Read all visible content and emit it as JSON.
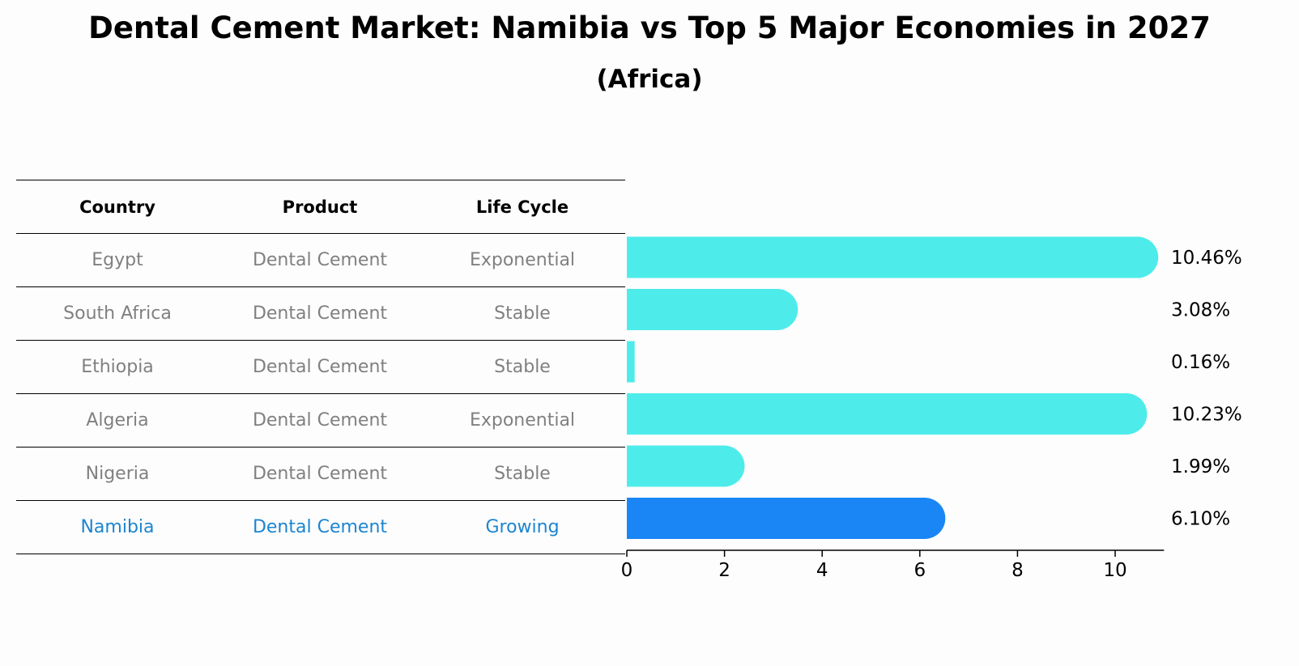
{
  "title": "Dental Cement Market: Namibia vs Top 5 Major Economies in 2027",
  "subtitle": "(Africa)",
  "table": {
    "headers": [
      "Country",
      "Product",
      "Life Cycle"
    ],
    "rows": [
      {
        "country": "Egypt",
        "product": "Dental Cement",
        "life_cycle": "Exponential"
      },
      {
        "country": "South Africa",
        "product": "Dental Cement",
        "life_cycle": "Stable"
      },
      {
        "country": "Ethiopia",
        "product": "Dental Cement",
        "life_cycle": "Stable"
      },
      {
        "country": "Algeria",
        "product": "Dental Cement",
        "life_cycle": "Exponential"
      },
      {
        "country": "Nigeria",
        "product": "Dental Cement",
        "life_cycle": "Stable"
      },
      {
        "country": "Namibia",
        "product": "Dental Cement",
        "life_cycle": "Growing"
      }
    ]
  },
  "chart_data": {
    "type": "bar",
    "orientation": "horizontal",
    "title": "Dental Cement Market: Namibia vs Top 5 Major Economies in 2027",
    "subtitle": "(Africa)",
    "categories": [
      "Egypt",
      "South Africa",
      "Ethiopia",
      "Algeria",
      "Nigeria",
      "Namibia"
    ],
    "values": [
      10.46,
      3.08,
      0.16,
      10.23,
      1.99,
      6.1
    ],
    "labels": [
      "10.46%",
      "3.08%",
      "0.16%",
      "10.23%",
      "1.99%",
      "6.10%"
    ],
    "highlight": "Namibia",
    "xlim": [
      0,
      11
    ],
    "xticks": [
      0,
      2,
      4,
      6,
      8,
      10
    ],
    "xlabel": "",
    "ylabel": "",
    "colors": {
      "default": "#4deceb",
      "highlight": "#1a86f5",
      "highlight_text": "#1c85d0",
      "muted_text": "#808080"
    }
  }
}
